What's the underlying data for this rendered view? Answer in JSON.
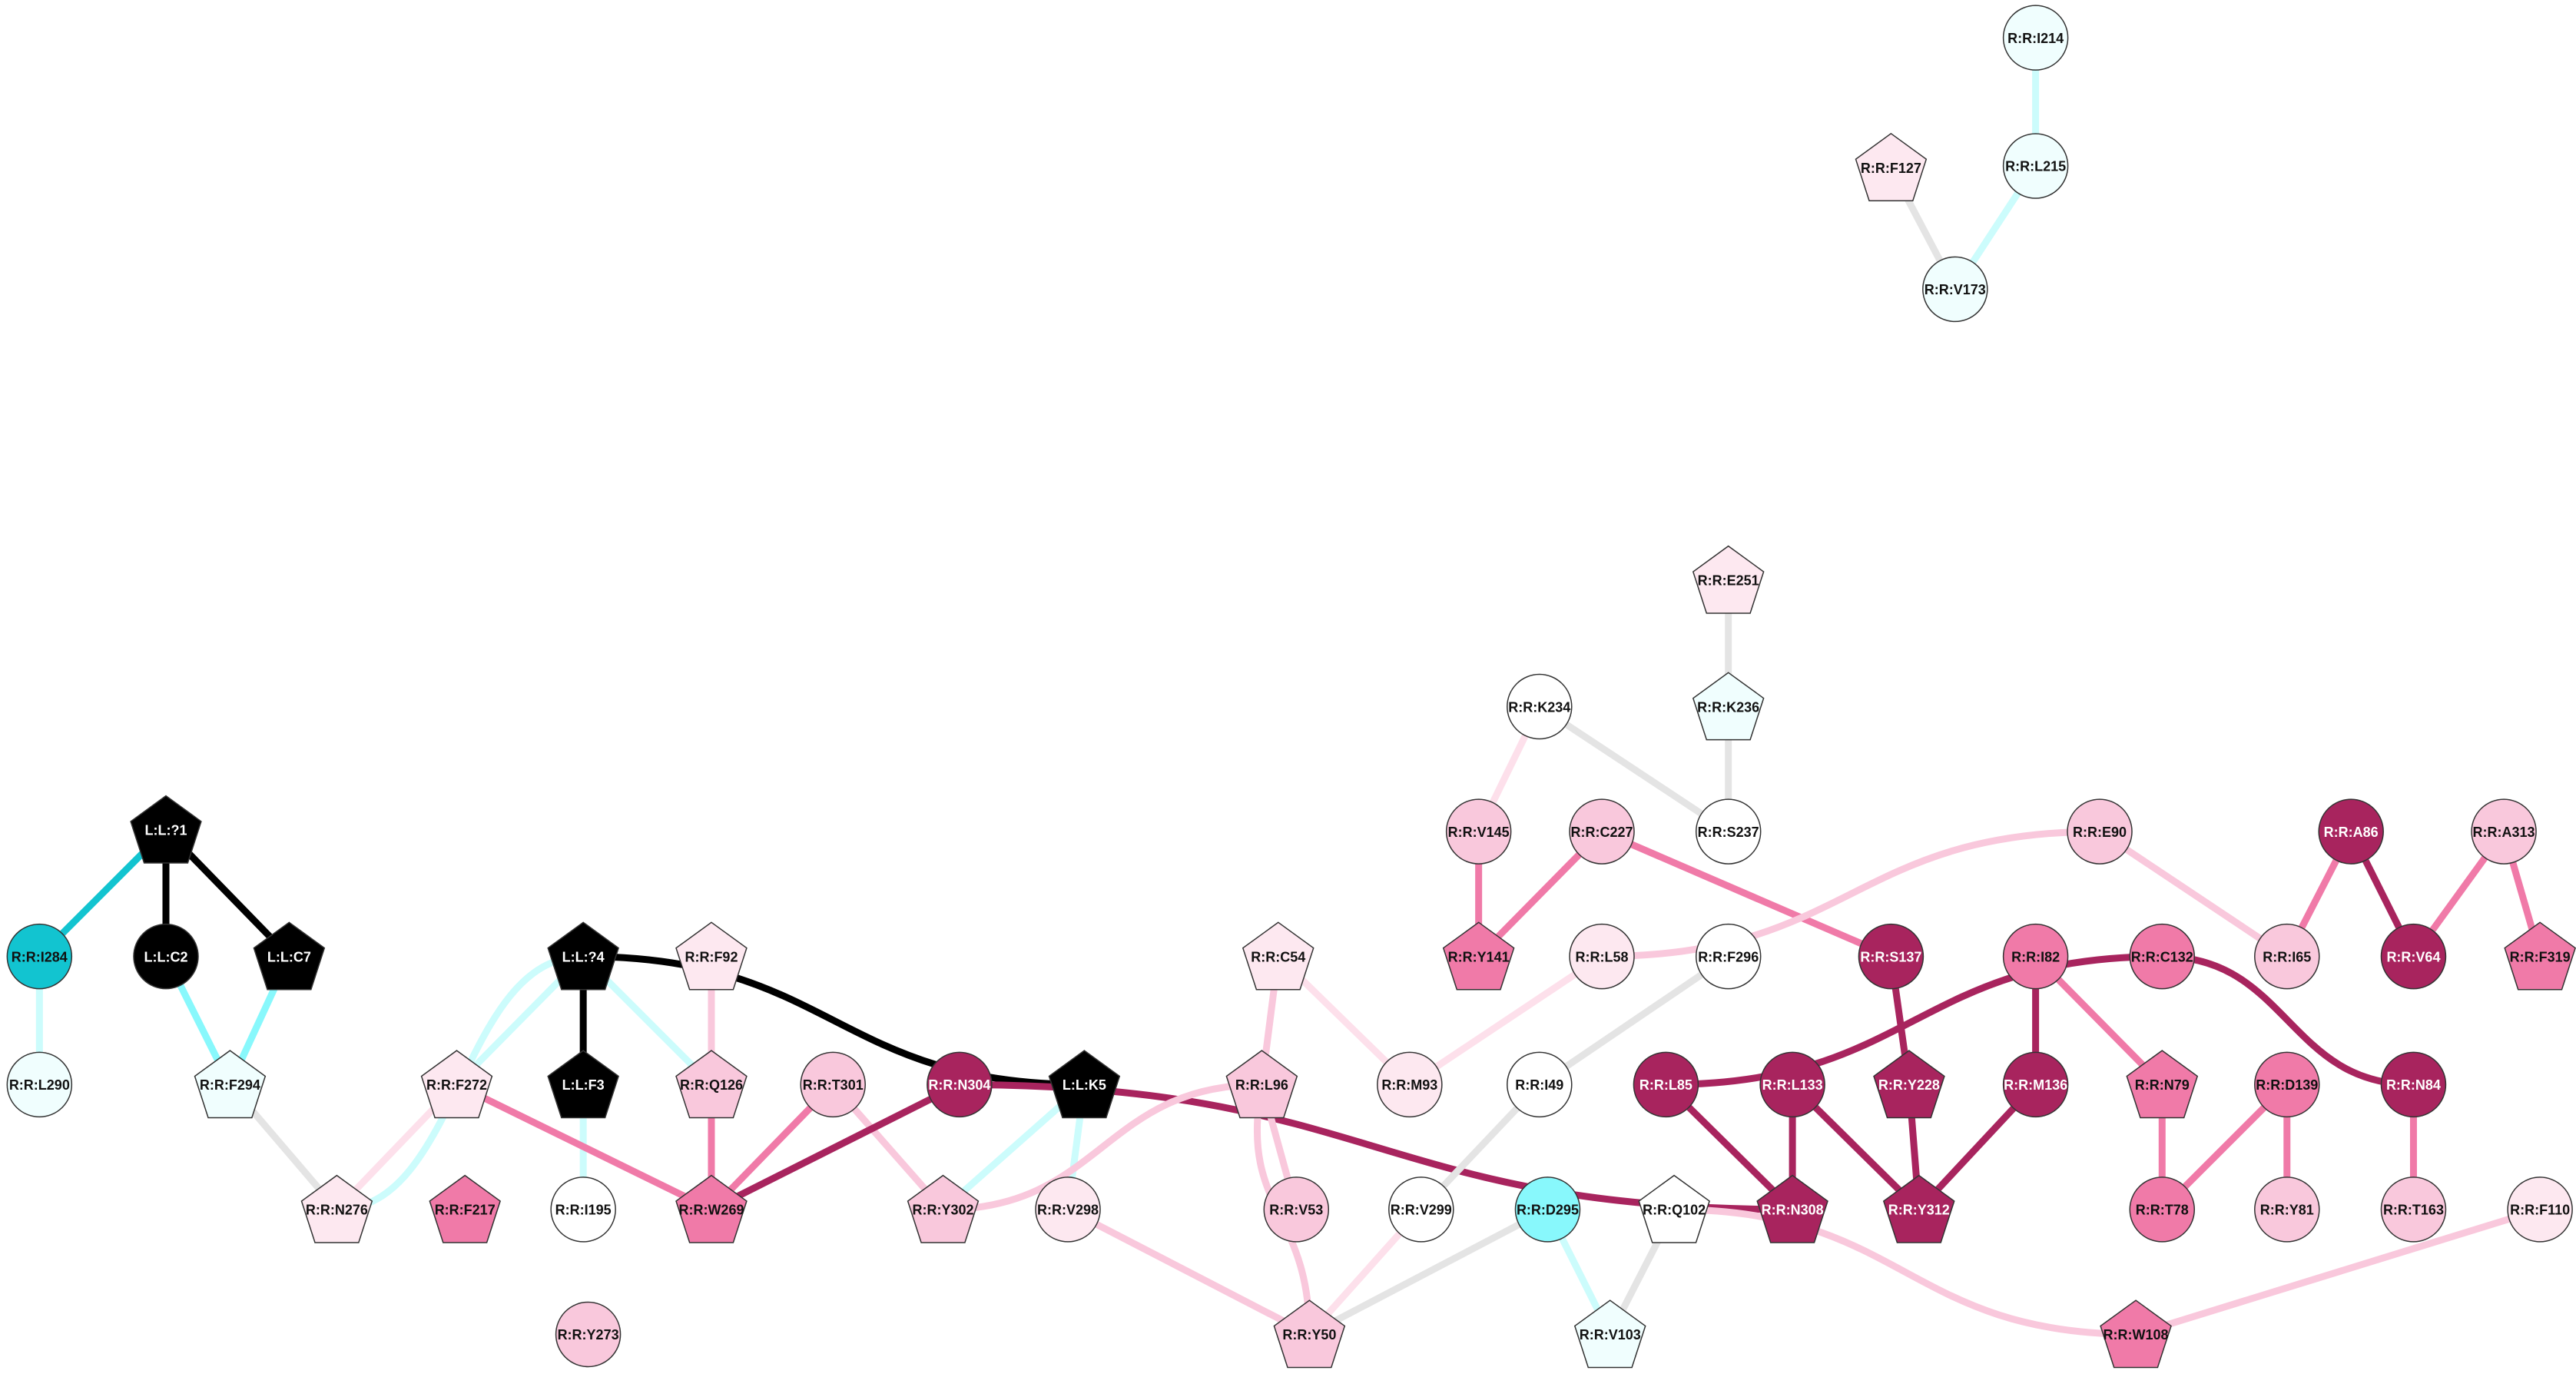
{
  "nodes": [
    {
      "label": "R:R:I214"
    },
    {
      "label": "R:R:F127"
    },
    {
      "label": "R:R:L215"
    },
    {
      "label": "R:R:V173"
    },
    {
      "label": "R:R:E251"
    },
    {
      "label": "R:R:K236"
    },
    {
      "label": "R:R:K234"
    },
    {
      "label": "R:R:S237"
    },
    {
      "label": "L:L:?1"
    },
    {
      "label": "R:R:V145"
    },
    {
      "label": "R:R:C227"
    },
    {
      "label": "R:R:E90"
    },
    {
      "label": "R:R:A86"
    },
    {
      "label": "R:R:A313"
    },
    {
      "label": "R:R:I284"
    },
    {
      "label": "L:L:C2"
    },
    {
      "label": "L:L:C7"
    },
    {
      "label": "L:L:?4"
    },
    {
      "label": "R:R:F92"
    },
    {
      "label": "R:R:C54"
    },
    {
      "label": "R:R:Y141"
    },
    {
      "label": "R:R:L58"
    },
    {
      "label": "R:R:F296"
    },
    {
      "label": "R:R:S137"
    },
    {
      "label": "R:R:I82"
    },
    {
      "label": "R:R:C132"
    },
    {
      "label": "R:R:I65"
    },
    {
      "label": "R:R:V64"
    },
    {
      "label": "R:R:F319"
    },
    {
      "label": "R:R:L290"
    },
    {
      "label": "R:R:F294"
    },
    {
      "label": "R:R:F272"
    },
    {
      "label": "L:L:F3"
    },
    {
      "label": "R:R:Q126"
    },
    {
      "label": "R:R:T301"
    },
    {
      "label": "R:R:N304"
    },
    {
      "label": "L:L:K5"
    },
    {
      "label": "R:R:L96"
    },
    {
      "label": "R:R:M93"
    },
    {
      "label": "R:R:I49"
    },
    {
      "label": "R:R:L85"
    },
    {
      "label": "R:R:L133"
    },
    {
      "label": "R:R:Y228"
    },
    {
      "label": "R:R:M136"
    },
    {
      "label": "R:R:N79"
    },
    {
      "label": "R:R:D139"
    },
    {
      "label": "R:R:N84"
    },
    {
      "label": "R:R:N276"
    },
    {
      "label": "R:R:F217"
    },
    {
      "label": "R:R:I195"
    },
    {
      "label": "R:R:W269"
    },
    {
      "label": "R:R:Y302"
    },
    {
      "label": "R:R:V298"
    },
    {
      "label": "R:R:V53"
    },
    {
      "label": "R:R:V299"
    },
    {
      "label": "R:R:D295"
    },
    {
      "label": "R:R:Q102"
    },
    {
      "label": "R:R:N308"
    },
    {
      "label": "R:R:Y312"
    },
    {
      "label": "R:R:T78"
    },
    {
      "label": "R:R:Y81"
    },
    {
      "label": "R:R:T163"
    },
    {
      "label": "R:R:F110"
    },
    {
      "label": "R:R:Y273"
    },
    {
      "label": "R:R:Y50"
    },
    {
      "label": "R:R:V103"
    },
    {
      "label": "R:R:W108"
    }
  ]
}
